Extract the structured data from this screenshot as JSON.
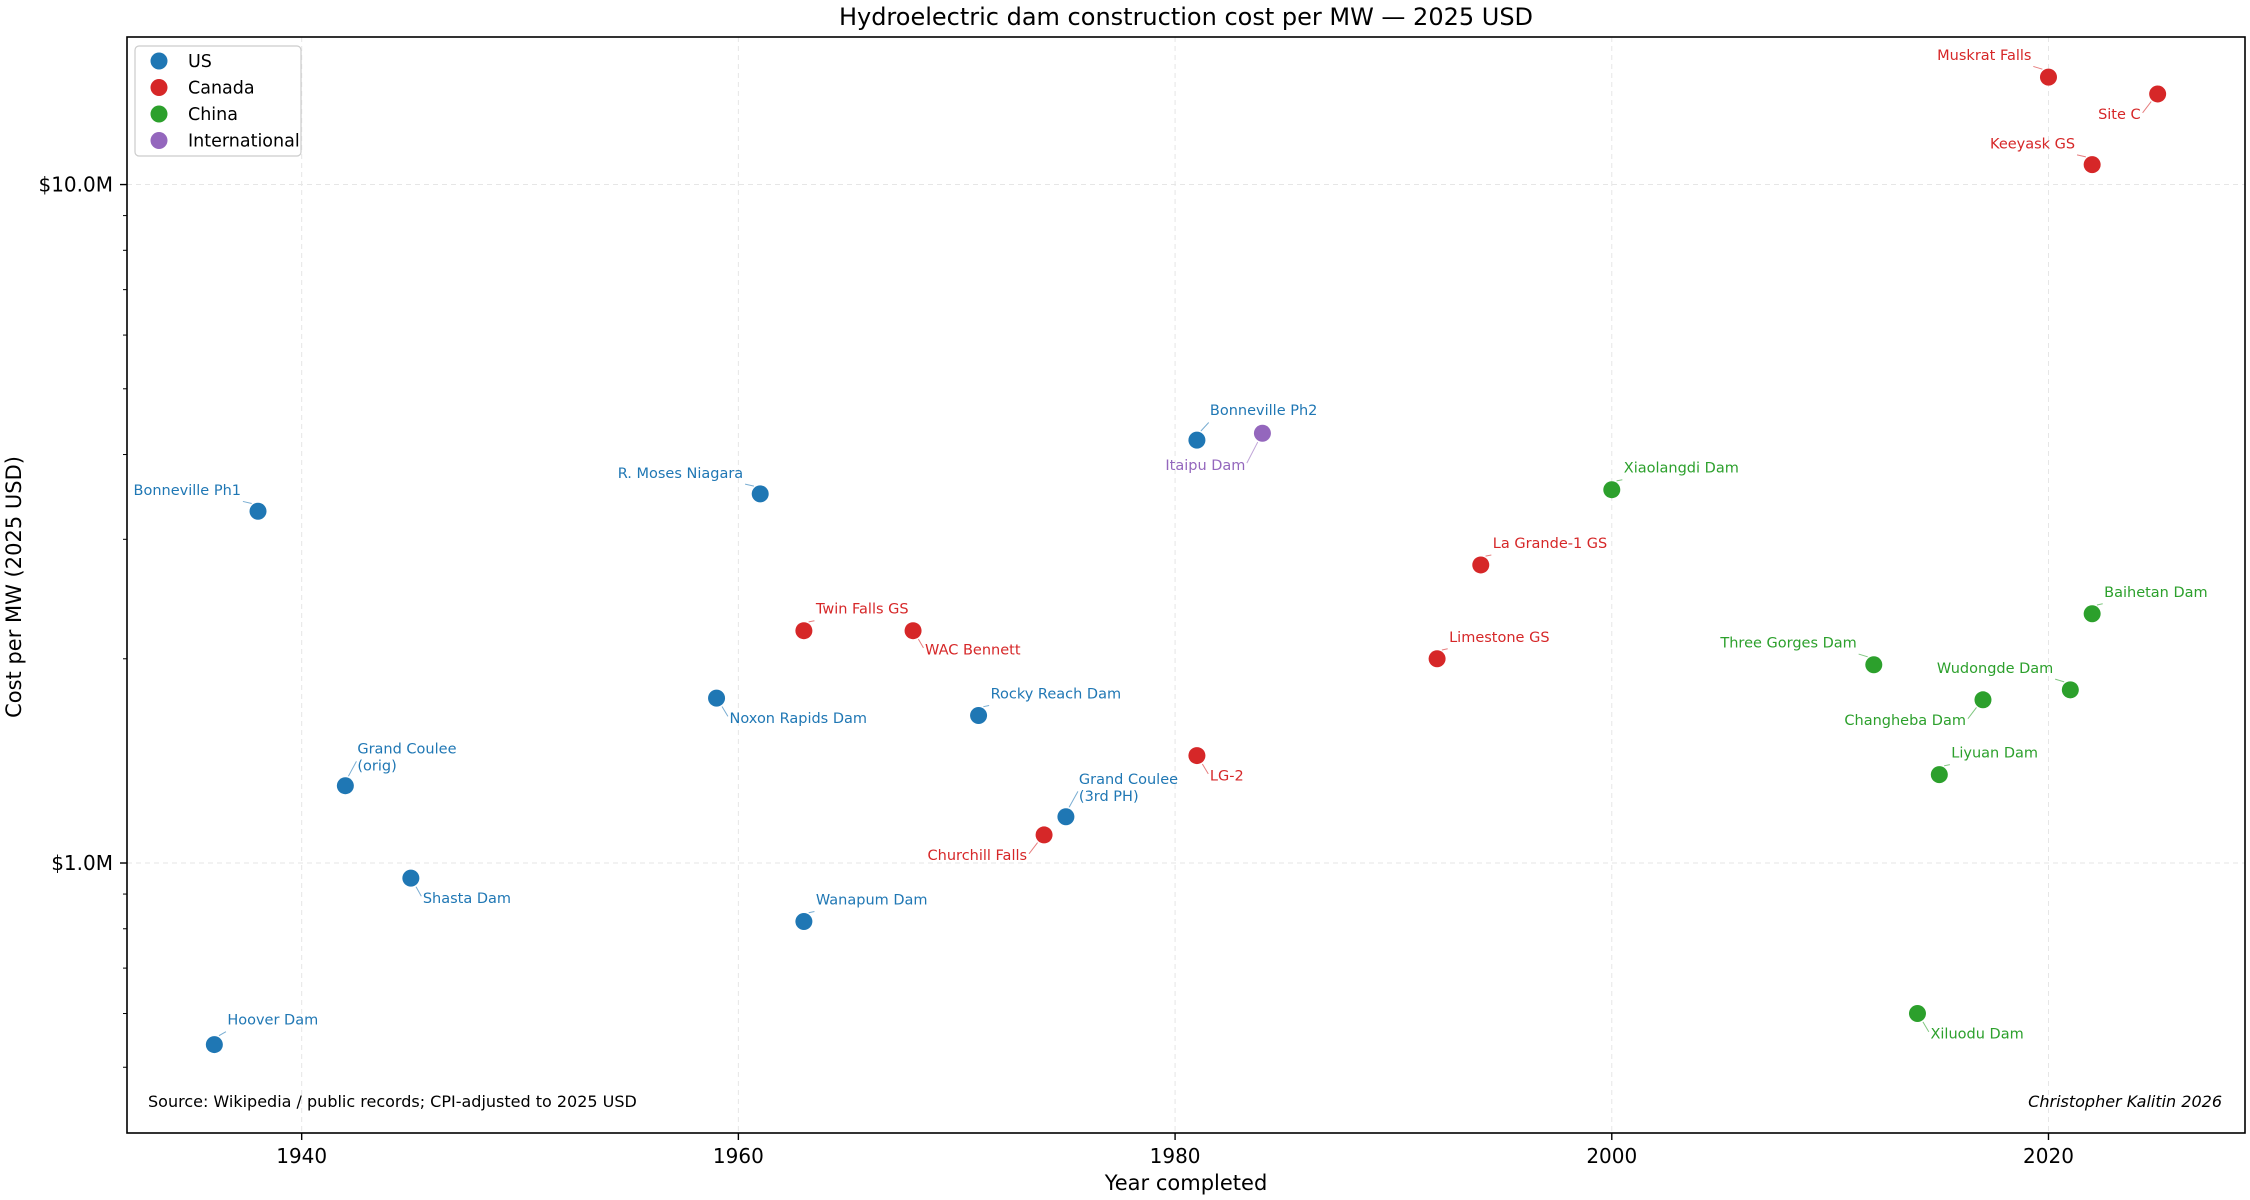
{
  "chart_data": {
    "type": "scatter",
    "title": "Hydroelectric dam construction cost per MW — 2025 USD",
    "xlabel": "Year completed",
    "ylabel": "Cost per MW (2025 USD)",
    "xlim": [
      1932,
      2029
    ],
    "ylim": [
      0.4,
      16.5
    ],
    "yscale": "log",
    "grid": true,
    "legend_position": "top-left",
    "x_ticks": [
      {
        "value": 1940,
        "label": "1940"
      },
      {
        "value": 1960,
        "label": "1960"
      },
      {
        "value": 1980,
        "label": "1980"
      },
      {
        "value": 2000,
        "label": "2000"
      },
      {
        "value": 2020,
        "label": "2020"
      }
    ],
    "y_ticks": [
      {
        "value": 1.0,
        "label": "$1.0M"
      },
      {
        "value": 10.0,
        "label": "$10.0M"
      }
    ],
    "series": [
      {
        "name": "US",
        "color": "#1f77b4",
        "points": [
          {
            "name": "Hoover Dam",
            "x": 1936,
            "y": 0.54
          },
          {
            "name": "Bonneville Ph1",
            "x": 1938,
            "y": 3.3
          },
          {
            "name": "Grand Coulee\n(orig)",
            "x": 1942,
            "y": 1.3
          },
          {
            "name": "Shasta Dam",
            "x": 1945,
            "y": 0.95
          },
          {
            "name": "Noxon Rapids Dam",
            "x": 1959,
            "y": 1.75
          },
          {
            "name": "R. Moses Niagara",
            "x": 1961,
            "y": 3.5
          },
          {
            "name": "Wanapum Dam",
            "x": 1963,
            "y": 0.82
          },
          {
            "name": "Rocky Reach Dam",
            "x": 1971,
            "y": 1.65
          },
          {
            "name": "Grand Coulee\n(3rd PH)",
            "x": 1975,
            "y": 1.17
          },
          {
            "name": "Bonneville Ph2",
            "x": 1981,
            "y": 4.2
          }
        ]
      },
      {
        "name": "Canada",
        "color": "#d62728",
        "points": [
          {
            "name": "Twin Falls GS",
            "x": 1963,
            "y": 2.2
          },
          {
            "name": "WAC Bennett",
            "x": 1968,
            "y": 2.2
          },
          {
            "name": "Churchill Falls",
            "x": 1974,
            "y": 1.1
          },
          {
            "name": "LG-2",
            "x": 1981,
            "y": 1.44
          },
          {
            "name": "Limestone GS",
            "x": 1992,
            "y": 2.0
          },
          {
            "name": "La Grande-1 GS",
            "x": 1994,
            "y": 2.75
          },
          {
            "name": "Muskrat Falls",
            "x": 2020,
            "y": 14.4
          },
          {
            "name": "Keeyask GS",
            "x": 2022,
            "y": 10.7
          },
          {
            "name": "Site C",
            "x": 2025,
            "y": 13.6
          }
        ]
      },
      {
        "name": "China",
        "color": "#2ca02c",
        "points": [
          {
            "name": "Xiaolangdi Dam",
            "x": 2000,
            "y": 3.55
          },
          {
            "name": "Three Gorges Dam",
            "x": 2012,
            "y": 1.96
          },
          {
            "name": "Xiluodu Dam",
            "x": 2014,
            "y": 0.6
          },
          {
            "name": "Liyuan Dam",
            "x": 2015,
            "y": 1.35
          },
          {
            "name": "Changheba Dam",
            "x": 2017,
            "y": 1.74
          },
          {
            "name": "Wudongde Dam",
            "x": 2021,
            "y": 1.8
          },
          {
            "name": "Baihetan Dam",
            "x": 2022,
            "y": 2.33
          }
        ]
      },
      {
        "name": "International",
        "color": "#9467bd",
        "points": [
          {
            "name": "Itaipu Dam",
            "x": 1984,
            "y": 4.3
          }
        ]
      }
    ],
    "annotations": {
      "source": "Source: Wikipedia / public records; CPI-adjusted to 2025 USD",
      "credit": "Christopher Kalitin 2026"
    }
  }
}
